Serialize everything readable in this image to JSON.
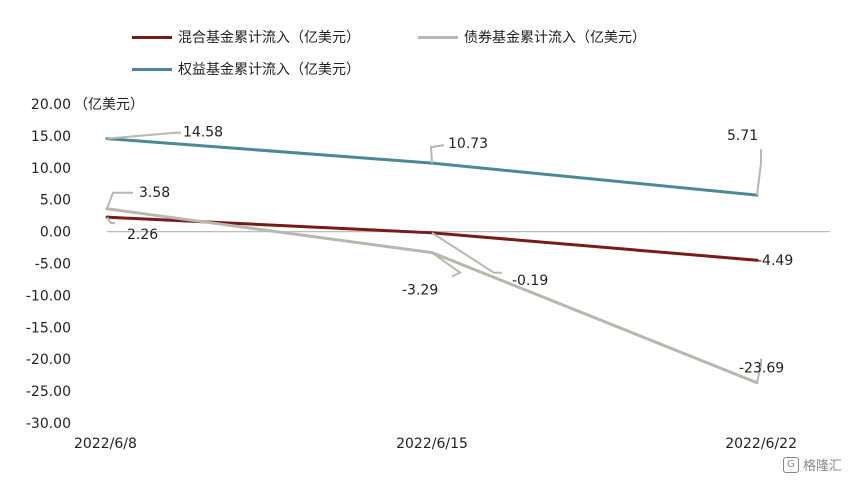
{
  "unit_label": "（亿美元）",
  "watermark": "格隆汇",
  "chart_data": {
    "type": "line",
    "categories": [
      "2022/6/8",
      "2022/6/15",
      "2022/6/22"
    ],
    "ylim": [
      -30,
      20
    ],
    "yticks": [
      "20.00",
      "15.00",
      "10.00",
      "5.00",
      "0.00",
      "-5.00",
      "-10.00",
      "-15.00",
      "-20.00",
      "-25.00",
      "-30.00"
    ],
    "series": [
      {
        "name": "混合基金累计流入（亿美元）",
        "color": "#7a1a1a",
        "values": [
          2.26,
          -0.19,
          -4.49
        ],
        "labels": [
          "2.26",
          "-0.19",
          "-4.49"
        ]
      },
      {
        "name": "债券基金累计流入（亿美元）",
        "color": "#b8b8ae",
        "values": [
          3.58,
          -3.29,
          -23.69
        ],
        "labels": [
          "3.58",
          "-3.29",
          "-23.69"
        ]
      },
      {
        "name": "权益基金累计流入（亿美元）",
        "color": "#4a8a96",
        "values": [
          14.58,
          10.73,
          5.71
        ],
        "labels": [
          "14.58",
          "10.73",
          "5.71"
        ]
      }
    ]
  }
}
